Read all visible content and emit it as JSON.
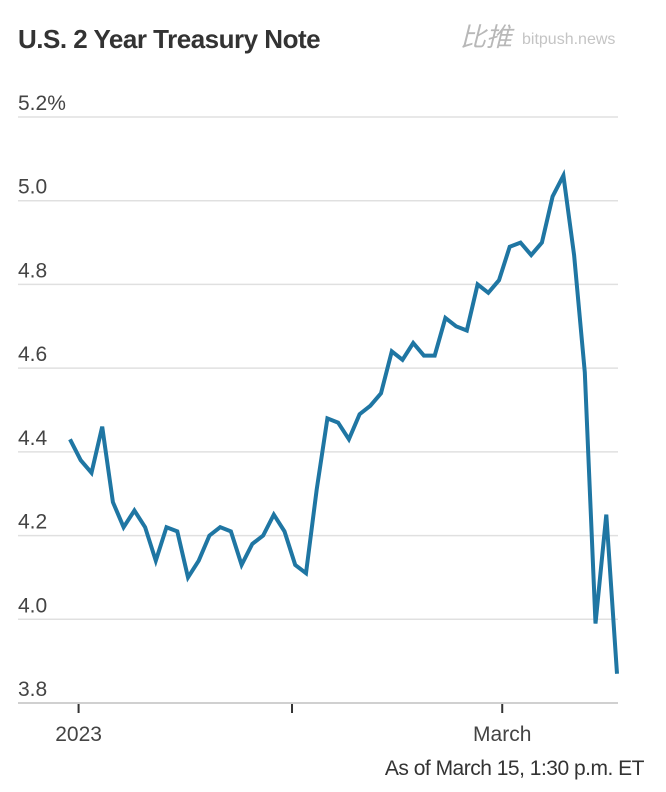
{
  "chart_data": {
    "type": "line",
    "title": "U.S. 2 Year Treasury Note",
    "xlabel": "",
    "ylabel": "",
    "ylim": [
      3.8,
      5.2
    ],
    "yticks": [
      {
        "value": 5.2,
        "label": "5.2%"
      },
      {
        "value": 5.0,
        "label": "5.0"
      },
      {
        "value": 4.8,
        "label": "4.8"
      },
      {
        "value": 4.6,
        "label": "4.6"
      },
      {
        "value": 4.4,
        "label": "4.4"
      },
      {
        "value": 4.2,
        "label": "4.2"
      },
      {
        "value": 4.0,
        "label": "4.0"
      },
      {
        "value": 3.8,
        "label": "3.8"
      }
    ],
    "xlim": [
      -0.8,
      50.2
    ],
    "xticks": [
      {
        "value": 0.8,
        "label": "2023"
      },
      {
        "value": 20.7,
        "label": ""
      },
      {
        "value": 40.3,
        "label": "March"
      }
    ],
    "grid": true,
    "series": [
      {
        "name": "U.S. 2 Year Treasury Note yield",
        "color": "#1f76a3",
        "values": [
          4.43,
          4.38,
          4.35,
          4.46,
          4.28,
          4.22,
          4.26,
          4.22,
          4.14,
          4.22,
          4.21,
          4.1,
          4.14,
          4.2,
          4.22,
          4.21,
          4.13,
          4.18,
          4.2,
          4.25,
          4.21,
          4.13,
          4.11,
          4.31,
          4.48,
          4.47,
          4.43,
          4.49,
          4.51,
          4.54,
          4.64,
          4.62,
          4.66,
          4.63,
          4.63,
          4.72,
          4.7,
          4.69,
          4.8,
          4.78,
          4.81,
          4.89,
          4.9,
          4.87,
          4.9,
          5.01,
          5.06,
          4.87,
          4.59,
          3.99,
          4.25,
          3.87
        ]
      }
    ],
    "note": "As of March 15, 1:30 p.m. ET",
    "watermark": {
      "cn": "比推",
      "en": "bitpush.news"
    }
  }
}
